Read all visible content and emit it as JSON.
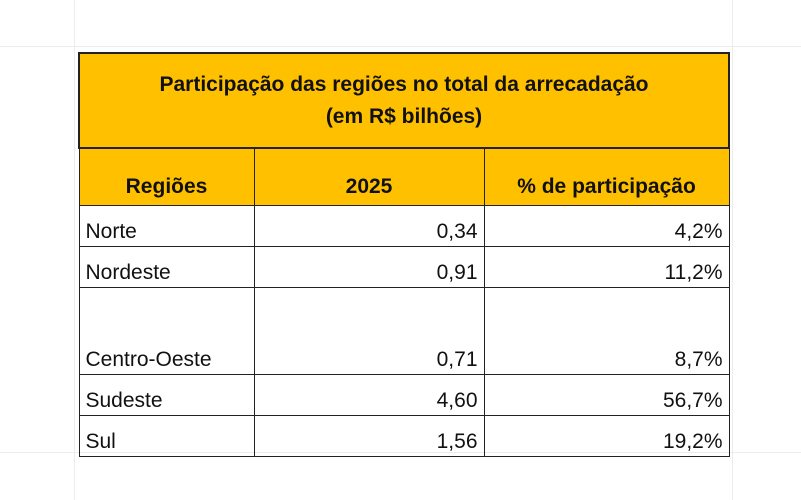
{
  "table": {
    "title_line1": "Participação das regiões no total da arrecadação",
    "title_line2": "(em R$ bilhões)",
    "headers": [
      "Regiões",
      "2025",
      "% de participação"
    ],
    "rows": [
      {
        "region": "Norte",
        "value": "0,34",
        "share": "4,2%"
      },
      {
        "region": "Nordeste",
        "value": "0,91",
        "share": "11,2%"
      },
      {
        "region": "Centro-Oeste",
        "value": "0,71",
        "share": "8,7%"
      },
      {
        "region": "Sudeste",
        "value": "4,60",
        "share": "56,7%"
      },
      {
        "region": "Sul",
        "value": "1,56",
        "share": "19,2%"
      }
    ]
  },
  "colors": {
    "header_fill": "#ffc000",
    "border": "#222222"
  }
}
